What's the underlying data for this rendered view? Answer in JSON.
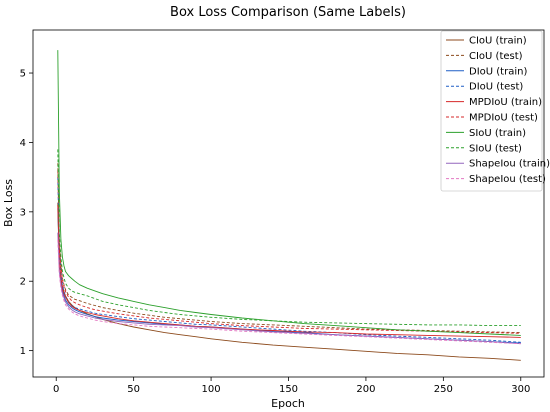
{
  "chart_data": {
    "type": "line",
    "title": "Box Loss Comparison (Same Labels)",
    "xlabel": "Epoch",
    "ylabel": "Box Loss",
    "xlim": [
      -15,
      315
    ],
    "ylim": [
      0.62,
      5.62
    ],
    "xticks": [
      0,
      50,
      100,
      150,
      200,
      250,
      300
    ],
    "yticks": [
      1,
      2,
      3,
      4,
      5
    ],
    "grid": false,
    "legend_position": "top-right",
    "x": [
      1,
      2,
      3,
      4,
      5,
      6,
      8,
      10,
      12,
      15,
      20,
      25,
      30,
      40,
      50,
      60,
      70,
      80,
      90,
      100,
      120,
      140,
      160,
      180,
      200,
      220,
      240,
      260,
      280,
      300
    ],
    "series": [
      {
        "name": "CIoU (train)",
        "color": "#8c4a1c",
        "dash": "solid",
        "values": [
          3.13,
          2.3,
          2.05,
          1.93,
          1.85,
          1.79,
          1.71,
          1.66,
          1.62,
          1.58,
          1.53,
          1.49,
          1.45,
          1.39,
          1.34,
          1.3,
          1.26,
          1.23,
          1.2,
          1.17,
          1.12,
          1.08,
          1.05,
          1.02,
          0.99,
          0.96,
          0.94,
          0.91,
          0.89,
          0.86
        ]
      },
      {
        "name": "CIoU (test)",
        "color": "#8c4a1c",
        "dash": "dashed",
        "values": [
          3.7,
          2.6,
          2.25,
          2.05,
          1.95,
          1.88,
          1.8,
          1.77,
          1.74,
          1.72,
          1.68,
          1.65,
          1.62,
          1.58,
          1.54,
          1.51,
          1.48,
          1.46,
          1.44,
          1.42,
          1.39,
          1.37,
          1.35,
          1.33,
          1.31,
          1.3,
          1.29,
          1.28,
          1.27,
          1.26
        ]
      },
      {
        "name": "DIoU (train)",
        "color": "#1f5fc6",
        "dash": "solid",
        "values": [
          3.05,
          2.25,
          2.0,
          1.87,
          1.79,
          1.73,
          1.66,
          1.62,
          1.59,
          1.56,
          1.52,
          1.49,
          1.47,
          1.44,
          1.42,
          1.4,
          1.38,
          1.37,
          1.35,
          1.34,
          1.31,
          1.28,
          1.26,
          1.23,
          1.21,
          1.19,
          1.17,
          1.15,
          1.13,
          1.11
        ]
      },
      {
        "name": "DIoU (test)",
        "color": "#1f5fc6",
        "dash": "dashed",
        "values": [
          3.5,
          2.4,
          2.1,
          1.95,
          1.85,
          1.78,
          1.7,
          1.65,
          1.62,
          1.6,
          1.57,
          1.54,
          1.52,
          1.49,
          1.46,
          1.44,
          1.42,
          1.4,
          1.38,
          1.37,
          1.34,
          1.31,
          1.28,
          1.26,
          1.23,
          1.21,
          1.19,
          1.17,
          1.15,
          1.12
        ]
      },
      {
        "name": "MPDIoU (train)",
        "color": "#d62728",
        "dash": "solid",
        "values": [
          3.1,
          2.28,
          2.02,
          1.9,
          1.82,
          1.77,
          1.69,
          1.64,
          1.61,
          1.58,
          1.55,
          1.52,
          1.5,
          1.46,
          1.43,
          1.41,
          1.39,
          1.37,
          1.35,
          1.34,
          1.31,
          1.29,
          1.27,
          1.26,
          1.24,
          1.23,
          1.22,
          1.21,
          1.2,
          1.19
        ]
      },
      {
        "name": "MPDIoU (test)",
        "color": "#d62728",
        "dash": "dashed",
        "values": [
          3.6,
          2.5,
          2.2,
          2.02,
          1.92,
          1.85,
          1.77,
          1.72,
          1.69,
          1.66,
          1.62,
          1.59,
          1.57,
          1.53,
          1.5,
          1.47,
          1.45,
          1.43,
          1.41,
          1.39,
          1.36,
          1.34,
          1.32,
          1.31,
          1.3,
          1.29,
          1.28,
          1.27,
          1.26,
          1.25
        ]
      },
      {
        "name": "SIoU (train)",
        "color": "#2ca02c",
        "dash": "solid",
        "values": [
          5.33,
          3.3,
          2.6,
          2.35,
          2.22,
          2.14,
          2.08,
          2.04,
          2.0,
          1.95,
          1.9,
          1.86,
          1.82,
          1.76,
          1.71,
          1.66,
          1.62,
          1.58,
          1.55,
          1.52,
          1.47,
          1.43,
          1.39,
          1.36,
          1.33,
          1.3,
          1.28,
          1.26,
          1.24,
          1.22
        ]
      },
      {
        "name": "SIoU (test)",
        "color": "#2ca02c",
        "dash": "dashed",
        "values": [
          3.9,
          2.7,
          2.35,
          2.15,
          2.05,
          1.97,
          1.9,
          1.86,
          1.84,
          1.82,
          1.79,
          1.75,
          1.71,
          1.66,
          1.62,
          1.58,
          1.55,
          1.52,
          1.5,
          1.48,
          1.45,
          1.43,
          1.41,
          1.4,
          1.39,
          1.38,
          1.37,
          1.37,
          1.36,
          1.36
        ]
      },
      {
        "name": "ShapeIou (train)",
        "color": "#9467bd",
        "dash": "solid",
        "values": [
          2.7,
          2.15,
          1.95,
          1.83,
          1.76,
          1.7,
          1.63,
          1.59,
          1.56,
          1.53,
          1.5,
          1.47,
          1.45,
          1.42,
          1.4,
          1.38,
          1.37,
          1.36,
          1.34,
          1.33,
          1.3,
          1.27,
          1.25,
          1.23,
          1.21,
          1.19,
          1.17,
          1.15,
          1.13,
          1.1
        ]
      },
      {
        "name": "ShapeIou (test)",
        "color": "#e377c2",
        "dash": "dashed",
        "values": [
          2.6,
          2.1,
          1.9,
          1.8,
          1.72,
          1.66,
          1.6,
          1.56,
          1.53,
          1.5,
          1.47,
          1.44,
          1.42,
          1.39,
          1.37,
          1.35,
          1.34,
          1.33,
          1.32,
          1.31,
          1.28,
          1.26,
          1.24,
          1.22,
          1.2,
          1.18,
          1.16,
          1.14,
          1.12,
          1.1
        ]
      }
    ]
  }
}
